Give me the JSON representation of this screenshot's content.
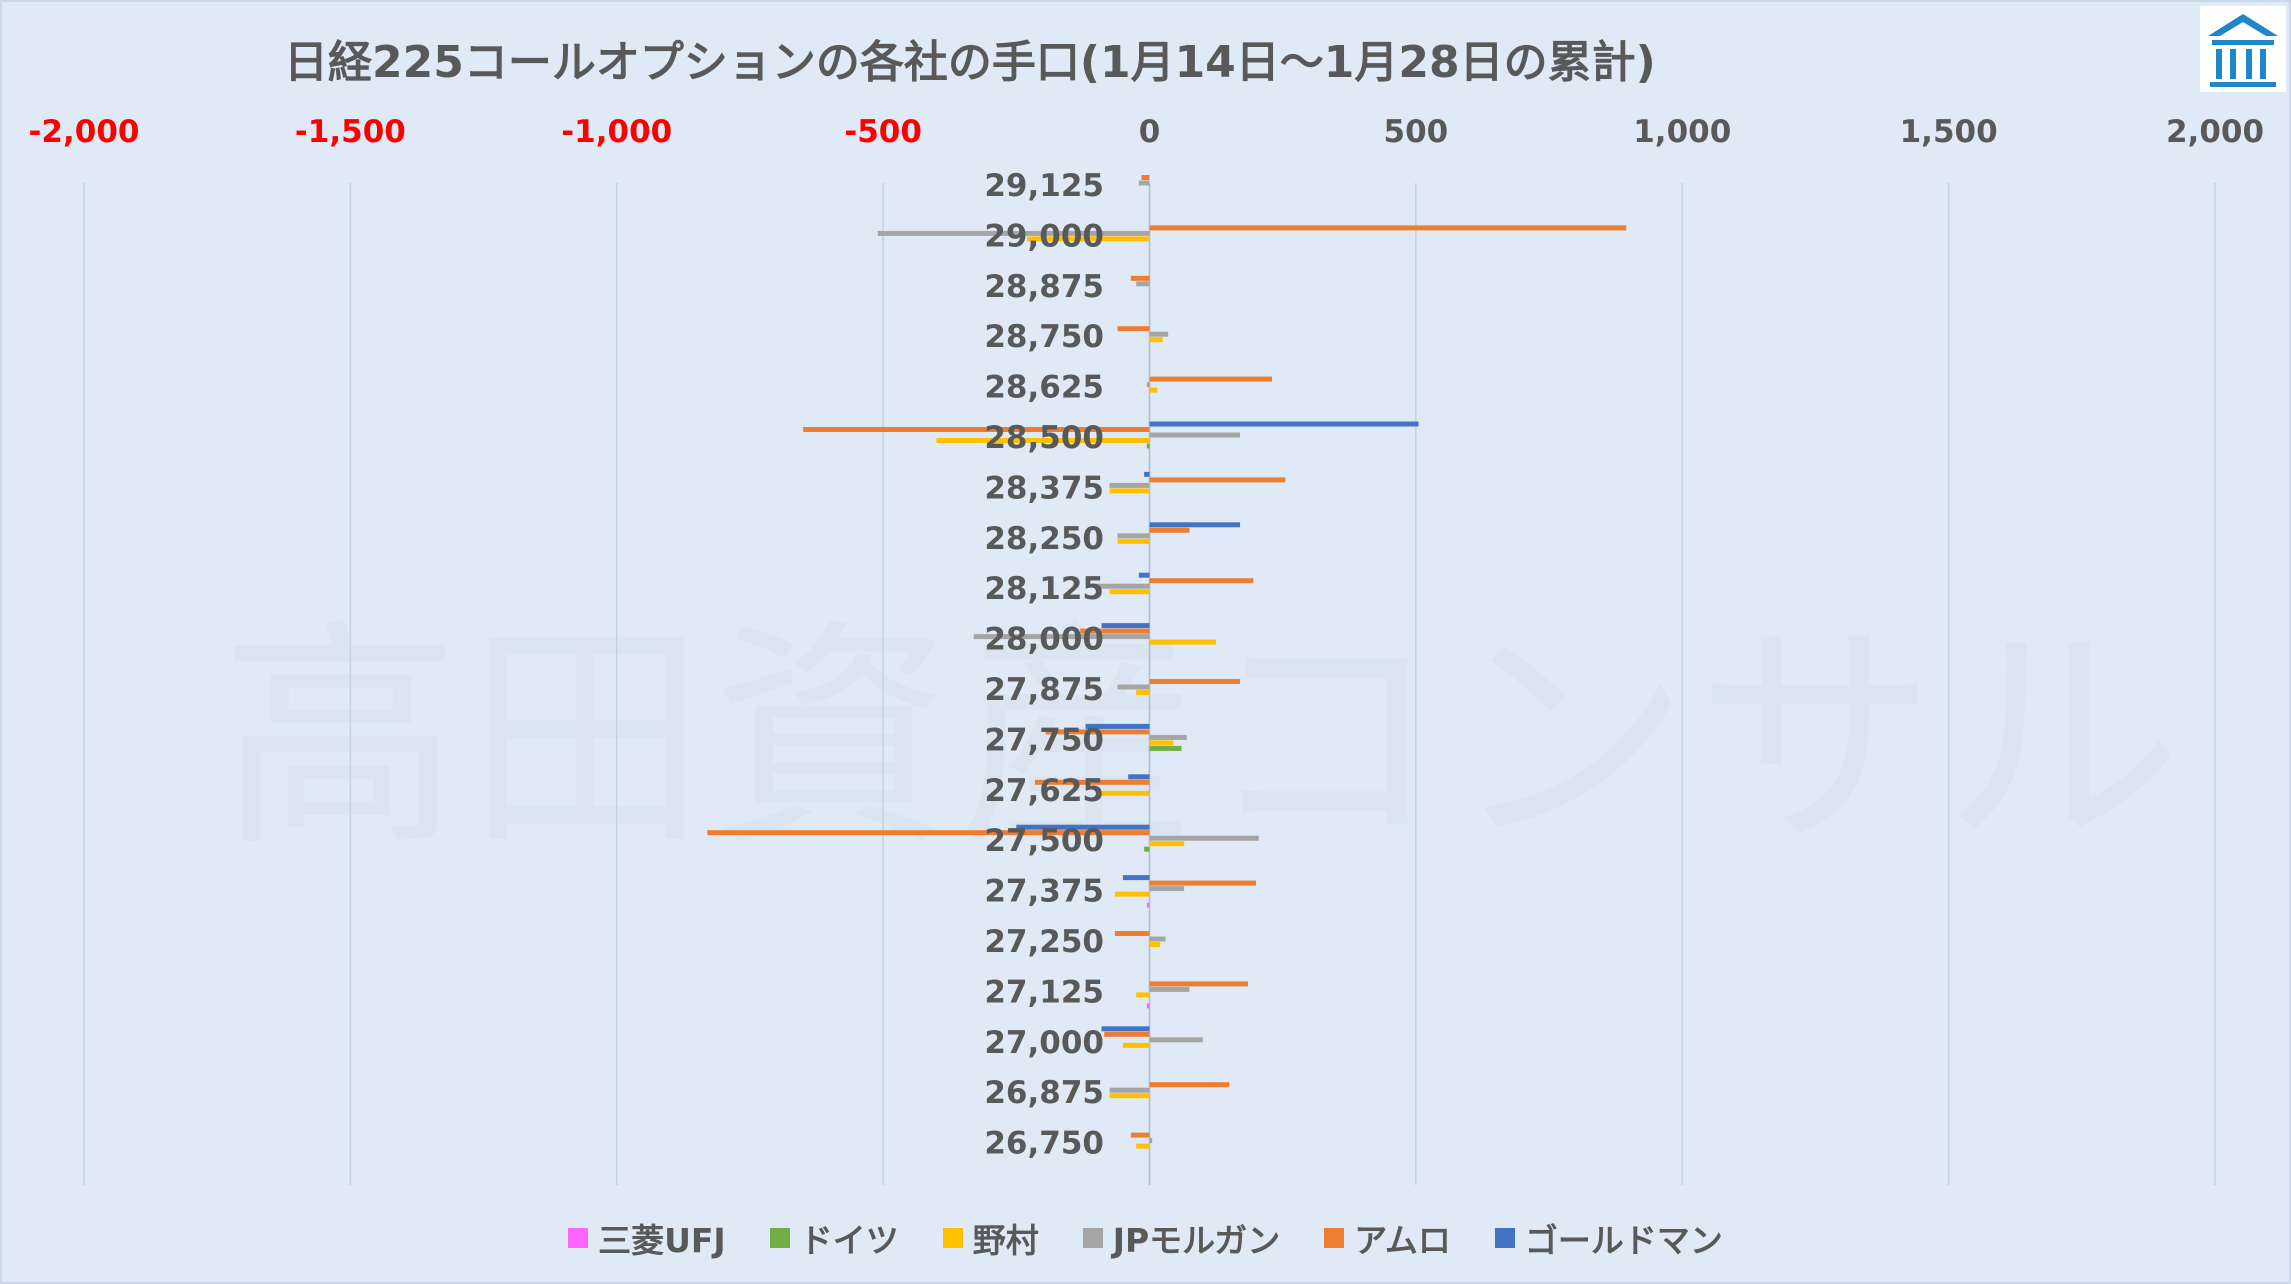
{
  "title": "日経225コールオプションの各社の手口(1月14日～1月28日の累計)",
  "watermark": "高田資産コンサル",
  "chart_data": {
    "type": "bar",
    "orientation": "horizontal",
    "title": "日経225コールオプションの各社の手口(1月14日～1月28日の累計)",
    "xlim": [
      -2000,
      2000
    ],
    "x_ticks": [
      -2000,
      -1500,
      -1000,
      -500,
      0,
      500,
      1000,
      1500,
      2000
    ],
    "x_tick_labels": [
      "-2,000",
      "-1,500",
      "-1,000",
      "-500",
      "0",
      "500",
      "1,000",
      "1,500",
      "2,000"
    ],
    "negative_tick_color": "#ff0000",
    "positive_tick_color": "#595959",
    "grid": "vertical",
    "legend_position": "bottom",
    "categories": [
      "29,125",
      "29,000",
      "28,875",
      "28,750",
      "28,625",
      "28,500",
      "28,375",
      "28,250",
      "28,125",
      "28,000",
      "27,875",
      "27,750",
      "27,625",
      "27,500",
      "27,375",
      "27,250",
      "27,125",
      "27,000",
      "26,875",
      "26,750"
    ],
    "series": [
      {
        "name": "三菱UFJ",
        "color": "#ff66ff",
        "values": [
          0,
          0,
          0,
          0,
          0,
          0,
          0,
          0,
          0,
          0,
          0,
          0,
          0,
          0,
          -5,
          0,
          -5,
          0,
          0,
          0
        ]
      },
      {
        "name": "ドイツ",
        "color": "#70ad47",
        "values": [
          0,
          0,
          0,
          0,
          0,
          -5,
          0,
          0,
          0,
          0,
          0,
          60,
          0,
          -10,
          0,
          0,
          0,
          0,
          0,
          0
        ]
      },
      {
        "name": "野村",
        "color": "#ffc000",
        "values": [
          0,
          -230,
          0,
          25,
          15,
          -400,
          -75,
          -60,
          -75,
          125,
          -25,
          45,
          -100,
          65,
          -65,
          20,
          -25,
          -50,
          -75,
          -25
        ]
      },
      {
        "name": "JPモルガン",
        "color": "#a5a5a5",
        "values": [
          -20,
          -510,
          -25,
          35,
          -5,
          170,
          -75,
          -60,
          -100,
          -330,
          -60,
          70,
          0,
          205,
          65,
          30,
          75,
          100,
          -75,
          5
        ]
      },
      {
        "name": "アムロ",
        "color": "#ed7d31",
        "values": [
          -15,
          895,
          -35,
          -60,
          230,
          -650,
          255,
          75,
          195,
          -130,
          170,
          -195,
          -215,
          -830,
          200,
          -65,
          185,
          -85,
          150,
          -35
        ]
      },
      {
        "name": "ゴールドマン",
        "color": "#4472c4",
        "values": [
          0,
          0,
          0,
          0,
          0,
          505,
          -10,
          170,
          -20,
          -90,
          0,
          -120,
          -40,
          -250,
          -50,
          0,
          0,
          -90,
          0,
          0
        ]
      }
    ]
  }
}
